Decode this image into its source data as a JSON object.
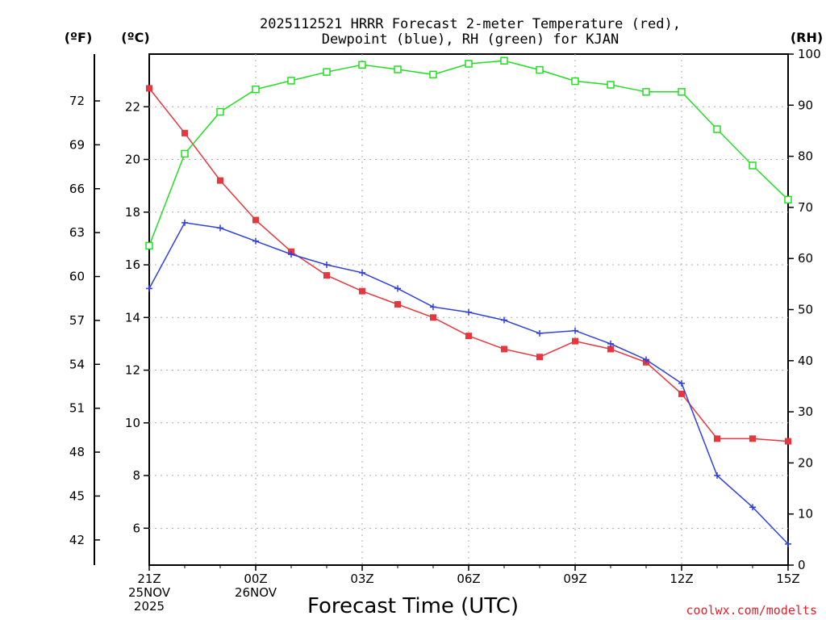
{
  "chart_data": {
    "type": "line",
    "title_line1": "2025112521 HRRR Forecast 2-meter Temperature (red),",
    "title_line2": "Dewpoint (blue), RH (green) for KJAN",
    "units": {
      "f": "(ºF)",
      "c": "(ºC)",
      "rh": "(RH)"
    },
    "xlabel": "Forecast Time (UTC)",
    "credit": "coolwx.com/modelts",
    "x_hours": [
      0,
      1,
      2,
      3,
      4,
      5,
      6,
      7,
      8,
      9,
      10,
      11,
      12,
      13,
      14,
      15,
      16,
      17,
      18
    ],
    "x_ticks": [
      {
        "hour": 0,
        "lines": [
          "21Z",
          "25NOV",
          "2025"
        ]
      },
      {
        "hour": 3,
        "lines": [
          "00Z",
          "26NOV"
        ]
      },
      {
        "hour": 6,
        "lines": [
          "03Z"
        ]
      },
      {
        "hour": 9,
        "lines": [
          "06Z"
        ]
      },
      {
        "hour": 12,
        "lines": [
          "09Z"
        ]
      },
      {
        "hour": 15,
        "lines": [
          "12Z"
        ]
      },
      {
        "hour": 18,
        "lines": [
          "15Z"
        ]
      }
    ],
    "xlim": [
      0,
      18
    ],
    "ylim_c": [
      4.6,
      24.0
    ],
    "ylim_rh": [
      0,
      100
    ],
    "y_ticks_c": [
      "6",
      "8",
      "10",
      "12",
      "14",
      "16",
      "18",
      "20",
      "22"
    ],
    "y_ticks_f": [
      "42",
      "45",
      "48",
      "51",
      "54",
      "57",
      "60",
      "63",
      "66",
      "69",
      "72"
    ],
    "y_ticks_rh": [
      "0",
      "10",
      "20",
      "30",
      "40",
      "50",
      "60",
      "70",
      "80",
      "90",
      "100"
    ],
    "grid": true,
    "series": [
      {
        "name": "Temperature",
        "axis": "c",
        "color": "#e8373c",
        "marker": "filled-square",
        "values": [
          22.7,
          21.0,
          19.2,
          17.7,
          16.5,
          15.6,
          15.0,
          14.5,
          14.0,
          13.3,
          12.8,
          12.5,
          13.1,
          12.8,
          12.3,
          11.1,
          9.4,
          9.4,
          9.3
        ]
      },
      {
        "name": "Dewpoint",
        "axis": "c",
        "color": "#2f3fe0",
        "marker": "plus",
        "values": [
          15.1,
          17.6,
          17.4,
          16.9,
          16.4,
          16.0,
          15.7,
          15.1,
          14.4,
          14.2,
          13.9,
          13.4,
          13.5,
          13.0,
          12.4,
          11.5,
          8.0,
          6.8,
          5.4
        ]
      },
      {
        "name": "RH",
        "axis": "rh",
        "color": "#22dd22",
        "marker": "open-square",
        "values": [
          62.5,
          80.5,
          88.7,
          93.1,
          94.8,
          96.5,
          97.9,
          97.0,
          96.0,
          98.1,
          98.7,
          96.9,
          94.7,
          94.0,
          92.6,
          92.6,
          85.3,
          78.2,
          71.5
        ]
      }
    ]
  }
}
